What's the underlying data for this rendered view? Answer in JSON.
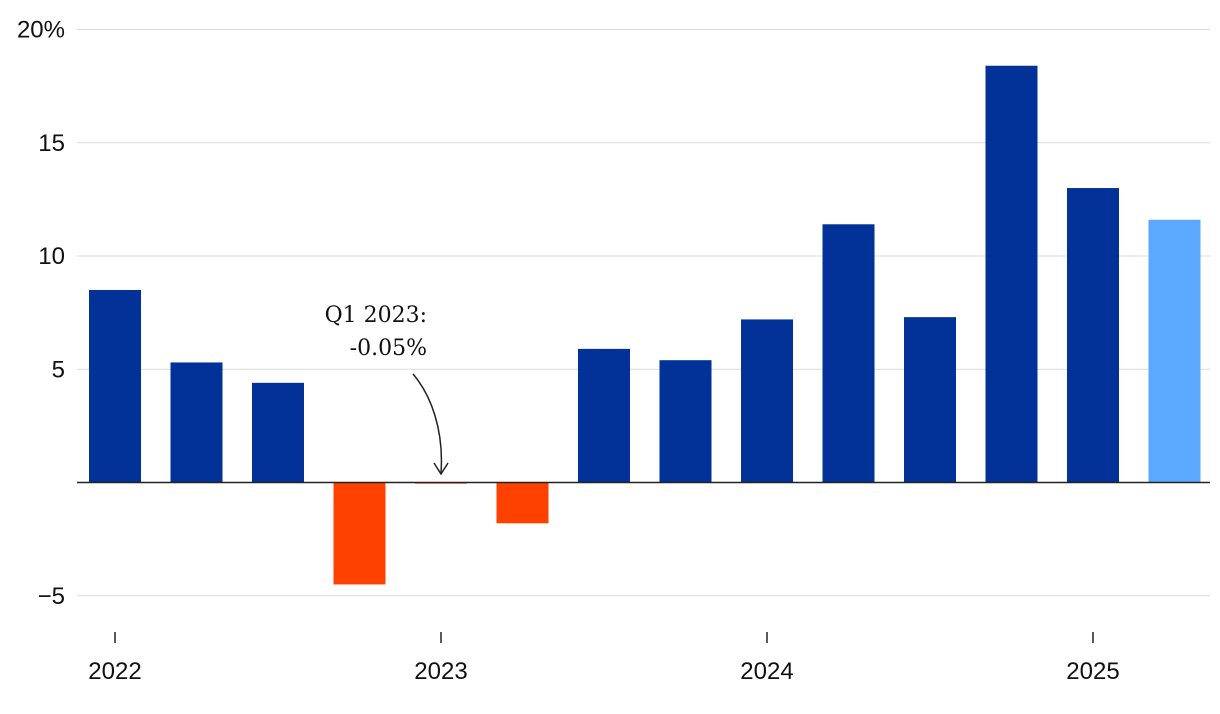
{
  "chart_data": {
    "type": "bar",
    "categories": [
      "Q1 2022",
      "Q2 2022",
      "Q3 2022",
      "Q4 2022",
      "Q1 2023",
      "Q2 2023",
      "Q3 2023",
      "Q4 2023",
      "Q1 2024",
      "Q2 2024",
      "Q3 2024",
      "Q4 2024",
      "Q1 2025",
      "Q2 2025"
    ],
    "values": [
      8.5,
      5.3,
      4.4,
      -4.5,
      -0.05,
      -1.8,
      5.9,
      5.4,
      7.2,
      11.4,
      7.3,
      18.4,
      13.0,
      11.6
    ],
    "colors": [
      "#023197",
      "#023197",
      "#023197",
      "#ff4100",
      "#ff4100",
      "#ff4100",
      "#023197",
      "#023197",
      "#023197",
      "#023197",
      "#023197",
      "#023197",
      "#023197",
      "#5aa9ff"
    ],
    "ylim": [
      -6,
      20
    ],
    "yticks": [
      -5,
      0,
      5,
      10,
      15,
      20
    ],
    "ytick_labels": [
      "−5",
      "",
      "5",
      "10",
      "15",
      "20%"
    ],
    "xticks": [
      {
        "label": "2022",
        "category_index": 0
      },
      {
        "label": "2023",
        "category_index": 4
      },
      {
        "label": "2024",
        "category_index": 8
      },
      {
        "label": "2025",
        "category_index": 12
      }
    ],
    "annotation": {
      "lines": [
        "Q1 2023:",
        "-0.05%"
      ],
      "category_index": 4
    },
    "grid": true
  }
}
